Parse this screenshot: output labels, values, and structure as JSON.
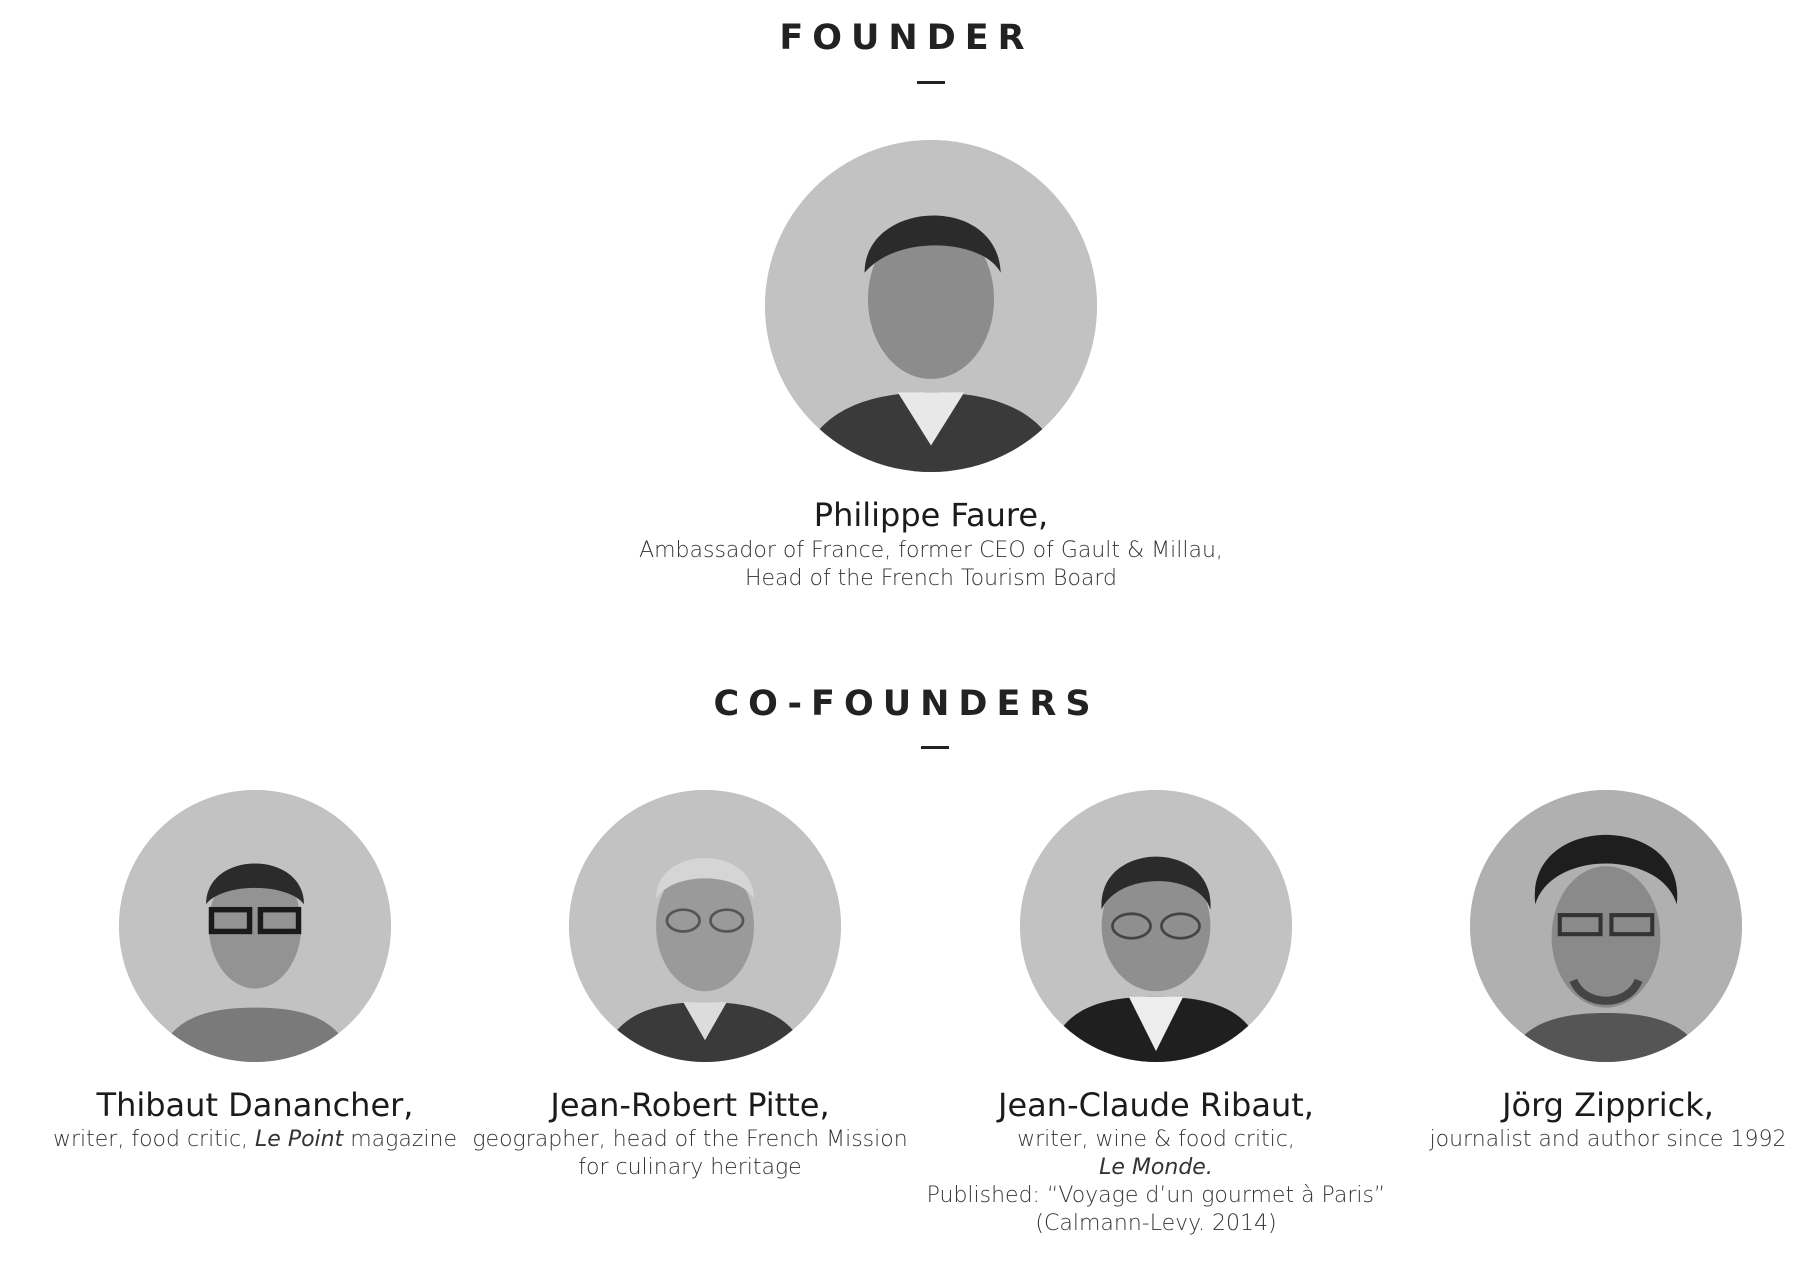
{
  "founder_section": {
    "title": "FOUNDER",
    "person": {
      "name": "Philippe Faure,",
      "desc_line1": "Ambassador of France, former CEO of Gault & Millau,",
      "desc_line2": "Head of the French Tourism Board"
    }
  },
  "cofounders_section": {
    "title": "CO-FOUNDERS",
    "people": [
      {
        "name": "Thibaut Danancher,",
        "desc_pre": "writer, food critic, ",
        "desc_italic": "Le Point",
        "desc_post": " magazine"
      },
      {
        "name": "Jean-Robert Pitte,",
        "desc_line1": "geographer, head of the French Mission",
        "desc_line2": "for culinary heritage"
      },
      {
        "name": "Jean-Claude Ribaut,",
        "desc_line1": "writer, wine & food critic,",
        "desc_line2": "Le Monde.",
        "desc_line3": "Published: “Voyage d’un gourmet à Paris”",
        "desc_line4": "(Calmann-Levy. 2014)"
      },
      {
        "name": "Jörg Zipprick,",
        "desc_line1": "journalist and author since 1992"
      }
    ]
  },
  "colors": {
    "avatar_bg": "#c2c2c2",
    "text": "#1a1a1a"
  }
}
